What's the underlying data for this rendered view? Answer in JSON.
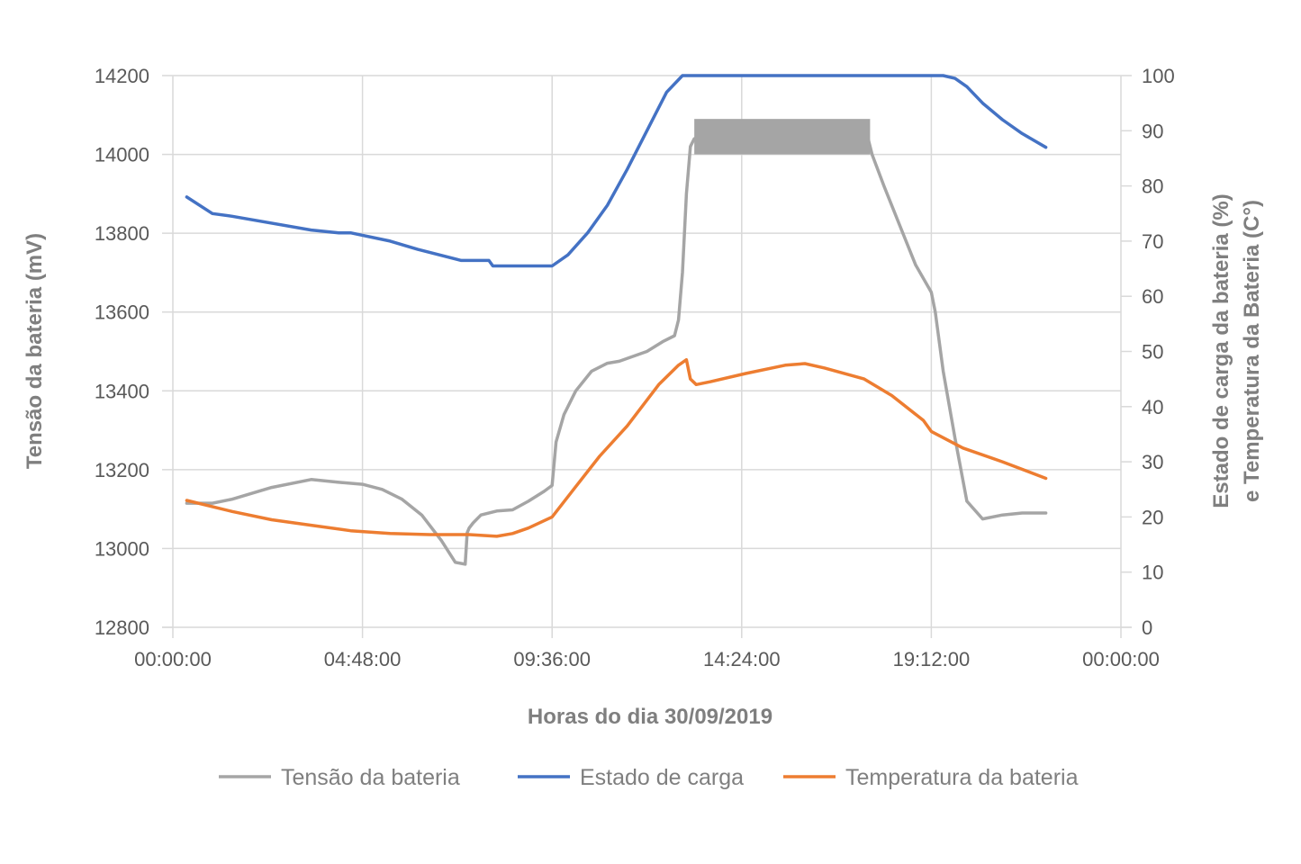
{
  "chart_data": {
    "type": "line",
    "xlabel": "Horas do dia 30/09/2019",
    "ylabel_left": "Tensão da bateria (mV)",
    "ylabel_right_line1": "Estado de carga da bateria (%)",
    "ylabel_right_line2": "e Temperatura da Bateria (C°)",
    "x_ticks": [
      "00:00:00",
      "04:48:00",
      "09:36:00",
      "14:24:00",
      "19:12:00",
      "00:00:00"
    ],
    "y_left_ticks": [
      "12800",
      "13000",
      "13200",
      "13400",
      "13600",
      "13800",
      "14000",
      "14200"
    ],
    "y_right_ticks": [
      "0",
      "10",
      "20",
      "30",
      "40",
      "50",
      "60",
      "70",
      "80",
      "90",
      "100"
    ],
    "xlim_hours": [
      0,
      24
    ],
    "ylim_left": [
      12800,
      14200
    ],
    "ylim_right": [
      0,
      100
    ],
    "grid": true,
    "legend_position": "bottom",
    "series": [
      {
        "name": "Tensão da bateria",
        "axis": "left",
        "color": "#a5a5a5",
        "x_hours": [
          0.35,
          1.0,
          1.5,
          2.5,
          3.5,
          4.2,
          4.8,
          5.3,
          5.8,
          6.3,
          6.8,
          7.15,
          7.4,
          7.45,
          7.5,
          7.6,
          7.8,
          8.2,
          8.6,
          9.0,
          9.4,
          9.6,
          9.7,
          9.9,
          10.2,
          10.6,
          11.0,
          11.3,
          12.0,
          12.4,
          12.7,
          12.8,
          12.9,
          13.0,
          13.1,
          13.2,
          13.25,
          17.6,
          17.7,
          18.0,
          18.4,
          18.8,
          19.2,
          19.3,
          19.5,
          19.8,
          20.1,
          20.5,
          21.0,
          21.5,
          22.1
        ],
        "values": [
          13115,
          13115,
          13125,
          13155,
          13175,
          13168,
          13163,
          13150,
          13125,
          13085,
          13020,
          12965,
          12960,
          13040,
          13052,
          13065,
          13085,
          13095,
          13098,
          13120,
          13145,
          13160,
          13270,
          13340,
          13400,
          13450,
          13470,
          13475,
          13500,
          13525,
          13540,
          13580,
          13700,
          13900,
          14020,
          14040,
          14040,
          14040,
          14000,
          13920,
          13820,
          13720,
          13650,
          13600,
          13450,
          13280,
          13120,
          13075,
          13085,
          13090,
          13090
        ]
      },
      {
        "name": "Estado de carga",
        "axis": "right",
        "color": "#4472c4",
        "x_hours": [
          0.35,
          1.0,
          1.5,
          3.5,
          4.2,
          4.5,
          5.5,
          6.2,
          7.3,
          8.0,
          8.1,
          8.2,
          9.0,
          9.6,
          10.0,
          10.5,
          11.0,
          11.5,
          12.0,
          12.5,
          12.9,
          13.0,
          19.5,
          19.8,
          20.1,
          20.5,
          21.0,
          21.5,
          22.1
        ],
        "values": [
          78,
          75,
          74.5,
          72,
          71.5,
          71.5,
          70,
          68.5,
          66.5,
          66.5,
          65.5,
          65.5,
          65.5,
          65.5,
          67.5,
          71.5,
          76.5,
          83,
          90,
          97,
          100,
          100,
          100,
          99.5,
          98,
          95,
          92,
          89.5,
          87
        ]
      },
      {
        "name": "Temperatura da bateria",
        "axis": "right",
        "color": "#ed7d31",
        "x_hours": [
          0.35,
          1.5,
          2.5,
          3.5,
          4.5,
          5.5,
          6.5,
          7.5,
          8.2,
          8.6,
          9.0,
          9.6,
          10.2,
          10.8,
          11.5,
          12.3,
          12.8,
          13.0,
          13.1,
          13.25,
          13.6,
          14.5,
          15.5,
          16.0,
          16.5,
          17.5,
          18.2,
          19.0,
          19.2,
          20.0,
          21.0,
          22.1
        ],
        "values": [
          23,
          21,
          19.5,
          18.5,
          17.5,
          17,
          16.8,
          16.8,
          16.5,
          17,
          18,
          20,
          25.5,
          31,
          36.5,
          44,
          47.5,
          48.5,
          45,
          44,
          44.5,
          46,
          47.5,
          47.8,
          47,
          45,
          42,
          37.5,
          35.5,
          32.5,
          30,
          27
        ]
      }
    ]
  }
}
